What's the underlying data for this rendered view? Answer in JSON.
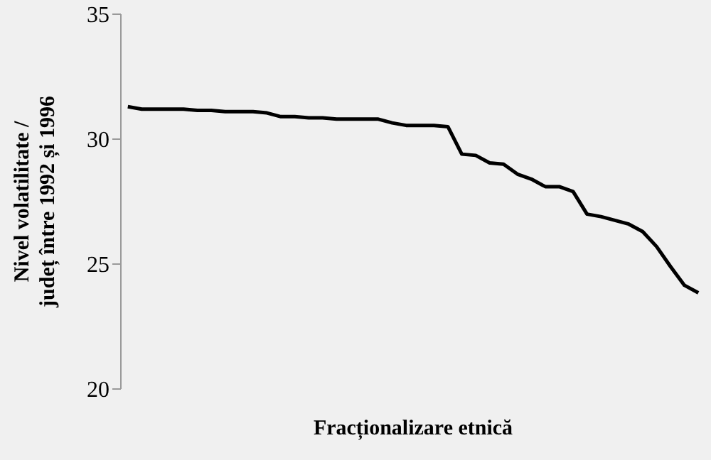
{
  "chart_data": {
    "type": "line",
    "xlabel": "Fracționalizare etnică",
    "ylabel": "Nivel volatilitate / județ între 1992 și 1996",
    "categories": [
      null,
      null,
      null,
      null,
      null,
      null,
      null,
      null,
      null,
      null,
      null,
      null,
      null,
      null,
      null,
      null,
      null,
      null,
      null,
      null,
      null,
      null,
      null,
      null,
      null,
      null,
      null,
      null,
      null,
      null,
      null,
      null,
      null,
      null,
      null,
      null,
      null,
      null,
      null,
      null,
      null,
      null
    ],
    "series": [
      {
        "color": "#000000",
        "values": [
          31.3,
          31.2,
          31.2,
          31.2,
          31.2,
          31.15,
          31.15,
          31.1,
          31.1,
          31.1,
          31.05,
          30.9,
          30.9,
          30.85,
          30.85,
          30.8,
          30.8,
          30.8,
          30.8,
          30.65,
          30.55,
          30.55,
          30.55,
          30.5,
          29.4,
          29.35,
          29.05,
          29.0,
          28.6,
          28.4,
          28.1,
          28.1,
          27.9,
          27.0,
          26.9,
          26.75,
          26.6,
          26.3,
          25.7,
          24.9,
          24.15,
          23.85
        ]
      }
    ],
    "ylim": [
      20,
      35
    ],
    "yticks": [
      20,
      25,
      30,
      35
    ],
    "grid": false,
    "legend": false,
    "marker": "none",
    "line_style": "solid",
    "tick_labels": "y"
  }
}
